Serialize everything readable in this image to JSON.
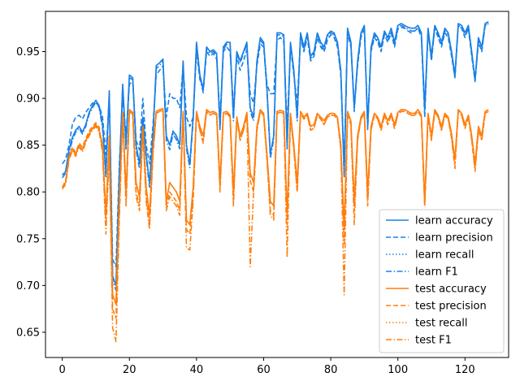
{
  "chart_data": {
    "type": "line",
    "title": "",
    "xlabel": "",
    "ylabel": "",
    "xlim": [
      -5,
      133
    ],
    "ylim": [
      0.623,
      0.993
    ],
    "xticks": [
      0,
      20,
      40,
      60,
      80,
      100,
      120
    ],
    "yticks": [
      0.65,
      0.7,
      0.75,
      0.8,
      0.85,
      0.9,
      0.95
    ],
    "grid": false,
    "legend_position": "lower-right",
    "colors": {
      "learn": "#1f77b4",
      "test": "#ff7f0e",
      "learn_display": "#1a80e6",
      "test_display": "#ff7f0e"
    },
    "x": [
      0,
      1,
      2,
      3,
      4,
      5,
      6,
      7,
      8,
      9,
      10,
      11,
      12,
      13,
      14,
      15,
      16,
      17,
      18,
      19,
      20,
      21,
      22,
      23,
      24,
      25,
      26,
      27,
      28,
      29,
      30,
      31,
      32,
      33,
      34,
      35,
      36,
      37,
      38,
      39,
      40,
      41,
      42,
      43,
      44,
      45,
      46,
      47,
      48,
      49,
      50,
      51,
      52,
      53,
      54,
      55,
      56,
      57,
      58,
      59,
      60,
      61,
      62,
      63,
      64,
      65,
      66,
      67,
      68,
      69,
      70,
      71,
      72,
      73,
      74,
      75,
      76,
      77,
      78,
      79,
      80,
      81,
      82,
      83,
      84,
      85,
      86,
      87,
      88,
      89,
      90,
      91,
      92,
      93,
      94,
      95,
      96,
      97,
      98,
      99,
      100,
      101,
      102,
      103,
      104,
      105,
      106,
      107,
      108,
      109,
      110,
      111,
      112,
      113,
      114,
      115,
      116,
      117,
      118,
      119,
      120,
      121,
      122,
      123,
      124,
      125,
      126,
      127
    ],
    "series": [
      {
        "name": "learn accuracy",
        "group": "learn",
        "dash": "solid",
        "values": [
          0.818,
          0.822,
          0.845,
          0.858,
          0.866,
          0.87,
          0.864,
          0.872,
          0.885,
          0.892,
          0.898,
          0.892,
          0.872,
          0.82,
          0.908,
          0.71,
          0.7,
          0.82,
          0.915,
          0.85,
          0.925,
          0.922,
          0.85,
          0.83,
          0.88,
          0.84,
          0.81,
          0.86,
          0.935,
          0.938,
          0.942,
          0.86,
          0.85,
          0.865,
          0.86,
          0.85,
          0.94,
          0.85,
          0.83,
          0.88,
          0.96,
          0.925,
          0.91,
          0.955,
          0.95,
          0.952,
          0.948,
          0.87,
          0.955,
          0.96,
          0.96,
          0.88,
          0.95,
          0.94,
          0.95,
          0.96,
          0.89,
          0.88,
          0.94,
          0.965,
          0.96,
          0.91,
          0.84,
          0.86,
          0.97,
          0.97,
          0.968,
          0.85,
          0.96,
          0.93,
          0.88,
          0.97,
          0.955,
          0.97,
          0.945,
          0.95,
          0.97,
          0.96,
          0.955,
          0.968,
          0.972,
          0.97,
          0.96,
          0.93,
          0.82,
          0.975,
          0.96,
          0.89,
          0.94,
          0.97,
          0.978,
          0.87,
          0.955,
          0.97,
          0.965,
          0.955,
          0.972,
          0.965,
          0.975,
          0.96,
          0.978,
          0.98,
          0.978,
          0.976,
          0.975,
          0.975,
          0.978,
          0.97,
          0.89,
          0.975,
          0.945,
          0.978,
          0.97,
          0.96,
          0.975,
          0.97,
          0.95,
          0.925,
          0.98,
          0.978,
          0.97,
          0.978,
          0.95,
          0.92,
          0.965,
          0.955,
          0.98,
          0.982
        ]
      },
      {
        "name": "learn precision",
        "group": "learn",
        "dash": "dashed",
        "values": [
          0.83,
          0.835,
          0.85,
          0.872,
          0.88,
          0.882,
          0.878,
          0.885,
          0.89,
          0.895,
          0.895,
          0.892,
          0.88,
          0.84,
          0.9,
          0.728,
          0.72,
          0.83,
          0.9,
          0.86,
          0.915,
          0.918,
          0.855,
          0.845,
          0.9,
          0.85,
          0.83,
          0.87,
          0.925,
          0.93,
          0.935,
          0.88,
          0.905,
          0.9,
          0.9,
          0.89,
          0.935,
          0.88,
          0.87,
          0.88,
          0.95,
          0.92,
          0.91,
          0.95,
          0.945,
          0.948,
          0.942,
          0.88,
          0.95,
          0.955,
          0.95,
          0.89,
          0.945,
          0.93,
          0.94,
          0.952,
          0.905,
          0.895,
          0.935,
          0.958,
          0.955,
          0.915,
          0.905,
          0.905,
          0.962,
          0.965,
          0.96,
          0.87,
          0.955,
          0.925,
          0.895,
          0.965,
          0.95,
          0.965,
          0.94,
          0.945,
          0.965,
          0.955,
          0.95,
          0.962,
          0.968,
          0.965,
          0.955,
          0.925,
          0.83,
          0.97,
          0.955,
          0.89,
          0.935,
          0.965,
          0.975,
          0.875,
          0.95,
          0.965,
          0.96,
          0.95,
          0.968,
          0.96,
          0.97,
          0.955,
          0.974,
          0.976,
          0.975,
          0.972,
          0.97,
          0.972,
          0.975,
          0.965,
          0.88,
          0.972,
          0.94,
          0.975,
          0.965,
          0.955,
          0.97,
          0.965,
          0.945,
          0.922,
          0.978,
          0.975,
          0.965,
          0.975,
          0.945,
          0.918,
          0.96,
          0.95,
          0.978,
          0.98
        ]
      },
      {
        "name": "learn recall",
        "group": "learn",
        "dash": "dotted",
        "values": [
          0.818,
          0.822,
          0.845,
          0.858,
          0.866,
          0.87,
          0.864,
          0.872,
          0.885,
          0.892,
          0.898,
          0.892,
          0.872,
          0.82,
          0.908,
          0.71,
          0.7,
          0.82,
          0.915,
          0.85,
          0.925,
          0.922,
          0.85,
          0.83,
          0.88,
          0.84,
          0.81,
          0.86,
          0.935,
          0.938,
          0.942,
          0.86,
          0.85,
          0.865,
          0.86,
          0.85,
          0.94,
          0.85,
          0.83,
          0.88,
          0.96,
          0.925,
          0.91,
          0.955,
          0.95,
          0.952,
          0.948,
          0.87,
          0.955,
          0.96,
          0.96,
          0.88,
          0.95,
          0.94,
          0.95,
          0.96,
          0.89,
          0.88,
          0.94,
          0.965,
          0.96,
          0.91,
          0.84,
          0.86,
          0.97,
          0.97,
          0.968,
          0.85,
          0.96,
          0.93,
          0.88,
          0.97,
          0.955,
          0.97,
          0.945,
          0.95,
          0.97,
          0.96,
          0.955,
          0.968,
          0.972,
          0.97,
          0.96,
          0.93,
          0.82,
          0.975,
          0.96,
          0.89,
          0.94,
          0.97,
          0.978,
          0.87,
          0.955,
          0.97,
          0.965,
          0.955,
          0.972,
          0.965,
          0.975,
          0.96,
          0.978,
          0.98,
          0.978,
          0.976,
          0.975,
          0.975,
          0.978,
          0.97,
          0.89,
          0.975,
          0.945,
          0.978,
          0.97,
          0.96,
          0.975,
          0.97,
          0.95,
          0.925,
          0.98,
          0.978,
          0.97,
          0.978,
          0.95,
          0.92,
          0.965,
          0.955,
          0.98,
          0.982
        ]
      },
      {
        "name": "learn F1",
        "group": "learn",
        "dash": "dashdot",
        "values": [
          0.815,
          0.82,
          0.842,
          0.855,
          0.864,
          0.868,
          0.862,
          0.87,
          0.883,
          0.89,
          0.896,
          0.89,
          0.868,
          0.815,
          0.905,
          0.705,
          0.695,
          0.815,
          0.912,
          0.845,
          0.922,
          0.92,
          0.845,
          0.825,
          0.878,
          0.836,
          0.805,
          0.856,
          0.932,
          0.935,
          0.94,
          0.855,
          0.845,
          0.862,
          0.856,
          0.846,
          0.938,
          0.846,
          0.826,
          0.876,
          0.958,
          0.922,
          0.906,
          0.952,
          0.948,
          0.95,
          0.946,
          0.866,
          0.952,
          0.958,
          0.958,
          0.876,
          0.948,
          0.938,
          0.948,
          0.958,
          0.886,
          0.876,
          0.938,
          0.962,
          0.958,
          0.906,
          0.836,
          0.856,
          0.968,
          0.968,
          0.966,
          0.846,
          0.958,
          0.928,
          0.876,
          0.968,
          0.952,
          0.968,
          0.942,
          0.948,
          0.968,
          0.958,
          0.952,
          0.966,
          0.97,
          0.968,
          0.958,
          0.926,
          0.815,
          0.972,
          0.958,
          0.886,
          0.938,
          0.968,
          0.976,
          0.866,
          0.952,
          0.968,
          0.962,
          0.952,
          0.97,
          0.962,
          0.972,
          0.958,
          0.976,
          0.978,
          0.976,
          0.974,
          0.972,
          0.972,
          0.976,
          0.968,
          0.886,
          0.972,
          0.942,
          0.976,
          0.968,
          0.958,
          0.972,
          0.968,
          0.948,
          0.922,
          0.978,
          0.976,
          0.968,
          0.976,
          0.948,
          0.918,
          0.962,
          0.952,
          0.978,
          0.98
        ]
      },
      {
        "name": "test accuracy",
        "group": "test",
        "dash": "solid",
        "values": [
          0.805,
          0.81,
          0.838,
          0.846,
          0.84,
          0.85,
          0.845,
          0.855,
          0.862,
          0.868,
          0.872,
          0.866,
          0.85,
          0.775,
          0.86,
          0.69,
          0.68,
          0.79,
          0.885,
          0.8,
          0.888,
          0.885,
          0.81,
          0.795,
          0.87,
          0.805,
          0.775,
          0.845,
          0.886,
          0.888,
          0.889,
          0.79,
          0.81,
          0.805,
          0.8,
          0.79,
          0.886,
          0.77,
          0.765,
          0.805,
          0.886,
          0.87,
          0.86,
          0.888,
          0.885,
          0.886,
          0.884,
          0.81,
          0.885,
          0.886,
          0.882,
          0.8,
          0.88,
          0.86,
          0.87,
          0.885,
          0.82,
          0.81,
          0.87,
          0.888,
          0.884,
          0.84,
          0.79,
          0.785,
          0.886,
          0.887,
          0.886,
          0.775,
          0.884,
          0.85,
          0.81,
          0.886,
          0.88,
          0.884,
          0.87,
          0.872,
          0.884,
          0.88,
          0.876,
          0.882,
          0.884,
          0.884,
          0.88,
          0.85,
          0.76,
          0.886,
          0.876,
          0.79,
          0.86,
          0.88,
          0.886,
          0.8,
          0.87,
          0.884,
          0.88,
          0.87,
          0.884,
          0.876,
          0.884,
          0.872,
          0.885,
          0.888,
          0.888,
          0.886,
          0.884,
          0.884,
          0.888,
          0.882,
          0.79,
          0.884,
          0.86,
          0.888,
          0.882,
          0.87,
          0.884,
          0.88,
          0.862,
          0.835,
          0.888,
          0.884,
          0.872,
          0.882,
          0.86,
          0.83,
          0.87,
          0.86,
          0.886,
          0.888
        ]
      },
      {
        "name": "test precision",
        "group": "test",
        "dash": "dashed",
        "values": [
          0.805,
          0.812,
          0.836,
          0.848,
          0.842,
          0.852,
          0.848,
          0.857,
          0.865,
          0.87,
          0.874,
          0.869,
          0.845,
          0.765,
          0.85,
          0.675,
          0.665,
          0.78,
          0.88,
          0.79,
          0.885,
          0.882,
          0.8,
          0.785,
          0.865,
          0.795,
          0.765,
          0.84,
          0.884,
          0.886,
          0.888,
          0.785,
          0.8,
          0.795,
          0.79,
          0.78,
          0.884,
          0.76,
          0.755,
          0.795,
          0.884,
          0.866,
          0.855,
          0.886,
          0.882,
          0.884,
          0.882,
          0.805,
          0.882,
          0.884,
          0.88,
          0.79,
          0.878,
          0.856,
          0.866,
          0.882,
          0.812,
          0.8,
          0.866,
          0.886,
          0.882,
          0.836,
          0.78,
          0.775,
          0.884,
          0.885,
          0.884,
          0.765,
          0.882,
          0.846,
          0.8,
          0.884,
          0.878,
          0.882,
          0.866,
          0.868,
          0.882,
          0.878,
          0.872,
          0.88,
          0.882,
          0.882,
          0.878,
          0.846,
          0.745,
          0.884,
          0.872,
          0.78,
          0.856,
          0.878,
          0.884,
          0.79,
          0.866,
          0.882,
          0.878,
          0.866,
          0.882,
          0.872,
          0.882,
          0.868,
          0.883,
          0.886,
          0.886,
          0.884,
          0.882,
          0.882,
          0.886,
          0.88,
          0.785,
          0.882,
          0.856,
          0.886,
          0.88,
          0.866,
          0.882,
          0.878,
          0.858,
          0.83,
          0.886,
          0.882,
          0.868,
          0.88,
          0.856,
          0.825,
          0.866,
          0.856,
          0.884,
          0.886
        ]
      },
      {
        "name": "test recall",
        "group": "test",
        "dash": "dotted",
        "values": [
          0.805,
          0.81,
          0.838,
          0.846,
          0.84,
          0.85,
          0.845,
          0.855,
          0.862,
          0.868,
          0.872,
          0.866,
          0.85,
          0.775,
          0.86,
          0.69,
          0.68,
          0.79,
          0.885,
          0.8,
          0.888,
          0.885,
          0.81,
          0.795,
          0.87,
          0.805,
          0.775,
          0.845,
          0.886,
          0.888,
          0.889,
          0.79,
          0.81,
          0.805,
          0.8,
          0.79,
          0.886,
          0.77,
          0.765,
          0.805,
          0.886,
          0.87,
          0.86,
          0.888,
          0.885,
          0.886,
          0.884,
          0.81,
          0.885,
          0.886,
          0.882,
          0.8,
          0.88,
          0.86,
          0.87,
          0.885,
          0.82,
          0.81,
          0.87,
          0.888,
          0.884,
          0.84,
          0.79,
          0.785,
          0.886,
          0.887,
          0.886,
          0.775,
          0.884,
          0.85,
          0.81,
          0.886,
          0.88,
          0.884,
          0.87,
          0.872,
          0.884,
          0.88,
          0.876,
          0.882,
          0.884,
          0.884,
          0.88,
          0.85,
          0.76,
          0.886,
          0.876,
          0.79,
          0.86,
          0.88,
          0.886,
          0.8,
          0.87,
          0.884,
          0.88,
          0.87,
          0.884,
          0.876,
          0.884,
          0.872,
          0.885,
          0.888,
          0.888,
          0.886,
          0.884,
          0.884,
          0.888,
          0.882,
          0.79,
          0.884,
          0.86,
          0.888,
          0.882,
          0.87,
          0.884,
          0.88,
          0.862,
          0.835,
          0.888,
          0.884,
          0.872,
          0.882,
          0.86,
          0.83,
          0.87,
          0.86,
          0.886,
          0.888
        ]
      },
      {
        "name": "test F1",
        "group": "test",
        "dash": "dashdot",
        "values": [
          0.803,
          0.808,
          0.834,
          0.844,
          0.838,
          0.848,
          0.843,
          0.853,
          0.86,
          0.866,
          0.87,
          0.864,
          0.842,
          0.755,
          0.845,
          0.655,
          0.64,
          0.77,
          0.882,
          0.785,
          0.886,
          0.883,
          0.795,
          0.78,
          0.866,
          0.79,
          0.76,
          0.838,
          0.884,
          0.886,
          0.887,
          0.78,
          0.795,
          0.79,
          0.785,
          0.775,
          0.884,
          0.74,
          0.738,
          0.79,
          0.884,
          0.866,
          0.852,
          0.886,
          0.883,
          0.884,
          0.882,
          0.8,
          0.883,
          0.884,
          0.88,
          0.785,
          0.878,
          0.855,
          0.866,
          0.883,
          0.72,
          0.8,
          0.866,
          0.886,
          0.882,
          0.834,
          0.775,
          0.77,
          0.884,
          0.885,
          0.884,
          0.73,
          0.882,
          0.845,
          0.8,
          0.884,
          0.878,
          0.882,
          0.866,
          0.868,
          0.882,
          0.878,
          0.872,
          0.88,
          0.882,
          0.882,
          0.878,
          0.845,
          0.69,
          0.884,
          0.872,
          0.765,
          0.855,
          0.878,
          0.884,
          0.785,
          0.866,
          0.882,
          0.878,
          0.866,
          0.882,
          0.872,
          0.882,
          0.868,
          0.883,
          0.886,
          0.886,
          0.884,
          0.882,
          0.882,
          0.886,
          0.88,
          0.785,
          0.882,
          0.855,
          0.886,
          0.88,
          0.866,
          0.882,
          0.878,
          0.857,
          0.825,
          0.886,
          0.882,
          0.868,
          0.88,
          0.855,
          0.822,
          0.866,
          0.855,
          0.884,
          0.886
        ]
      }
    ]
  }
}
